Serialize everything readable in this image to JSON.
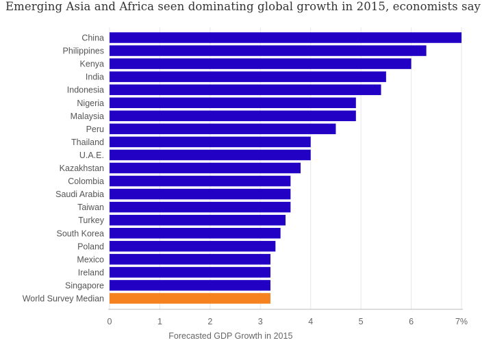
{
  "title": "Emerging Asia and Africa seen dominating global growth in 2015, economists say",
  "chart_data": {
    "type": "bar",
    "orientation": "horizontal",
    "categories": [
      "China",
      "Philippines",
      "Kenya",
      "India",
      "Indonesia",
      "Nigeria",
      "Malaysia",
      "Peru",
      "Thailand",
      "U.A.E.",
      "Kazakhstan",
      "Colombia",
      "Saudi Arabia",
      "Taiwan",
      "Turkey",
      "South Korea",
      "Poland",
      "Mexico",
      "Ireland",
      "Singapore",
      "World Survey Median"
    ],
    "values": [
      7.0,
      6.3,
      6.0,
      5.5,
      5.4,
      4.9,
      4.9,
      4.5,
      4.0,
      4.0,
      3.8,
      3.6,
      3.6,
      3.6,
      3.5,
      3.4,
      3.3,
      3.2,
      3.2,
      3.2,
      3.2
    ],
    "colors": {
      "default": "#2200c4",
      "highlight": "#f5821f"
    },
    "highlight_category": "World Survey Median",
    "xlabel": "Forecasted GDP Growth in 2015",
    "xlim": [
      0,
      7
    ],
    "xticks": [
      "0",
      "1",
      "2",
      "3",
      "4",
      "5",
      "6",
      "7%"
    ],
    "grid": "vertical",
    "legend": "none"
  }
}
